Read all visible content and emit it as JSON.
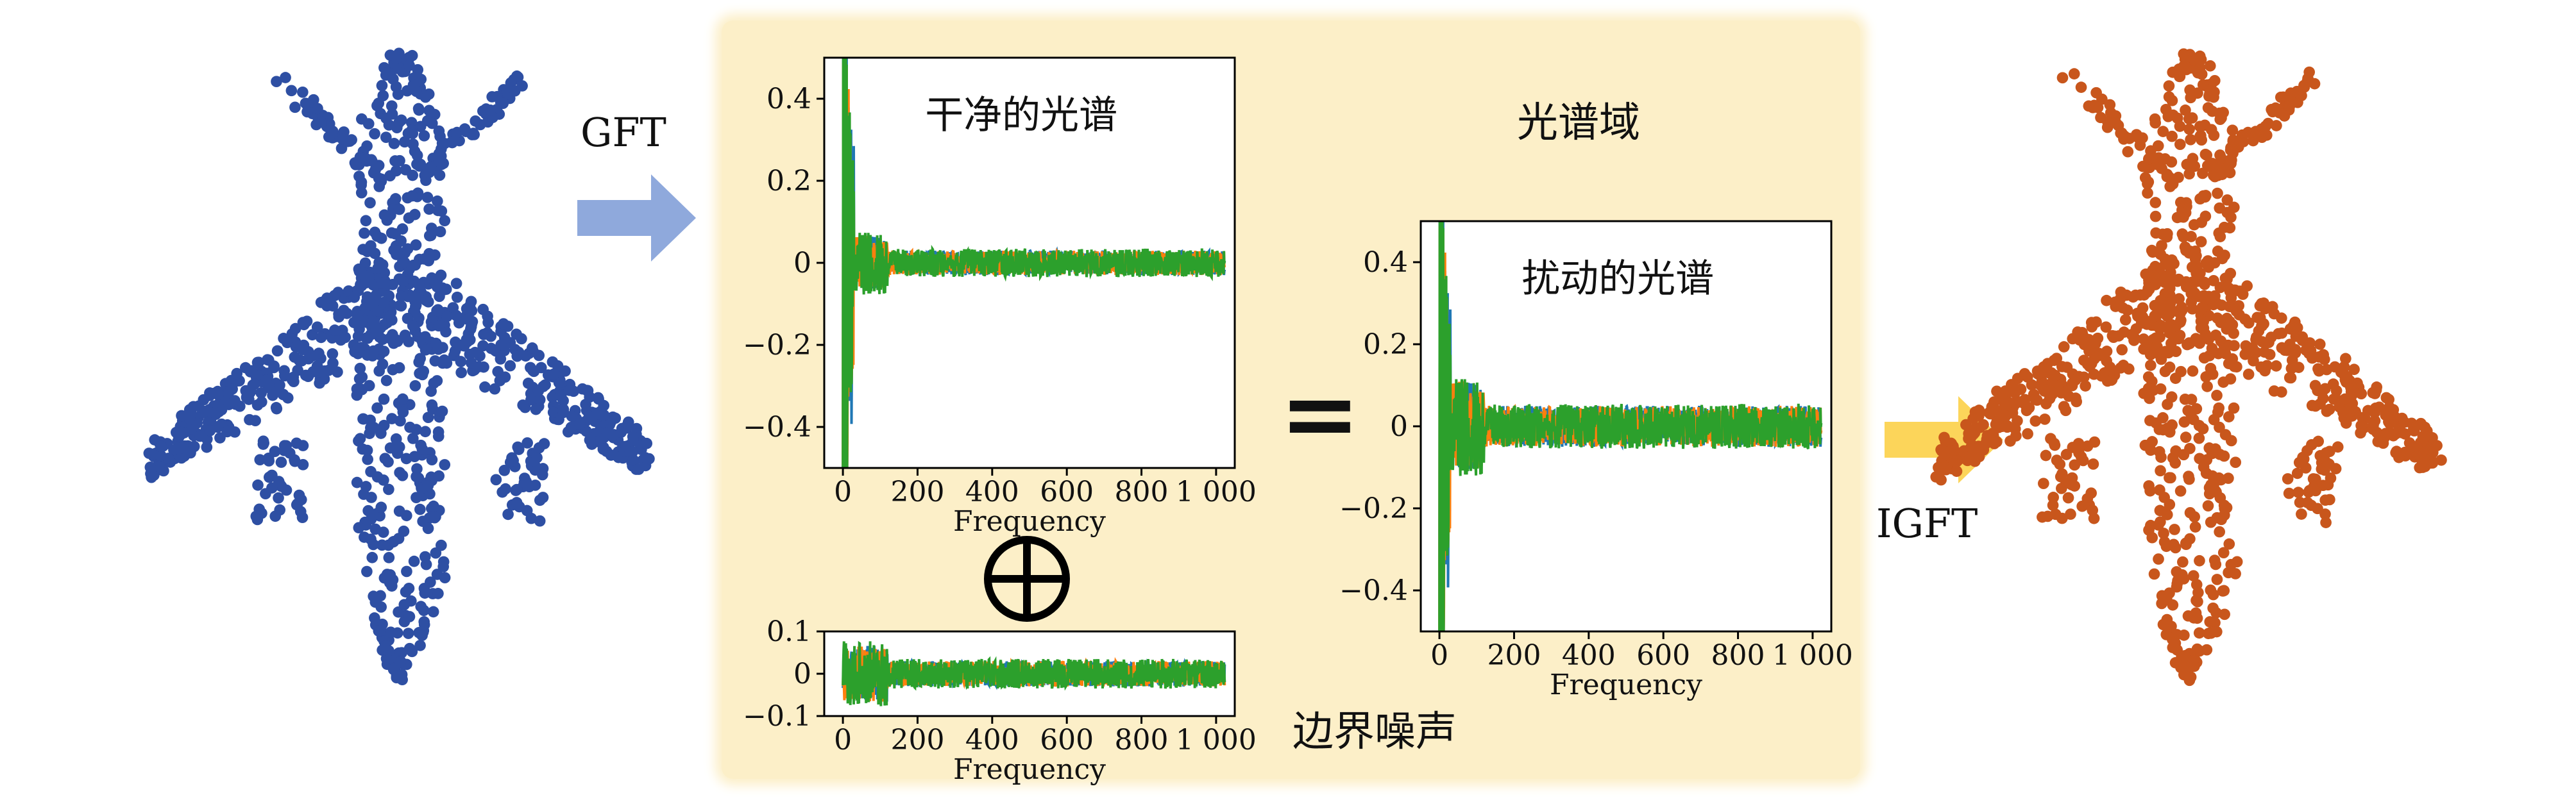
{
  "labels": {
    "gft": "GFT",
    "igft": "IGFT",
    "spectral_domain": "光谱域",
    "boundary_noise": "边界噪声",
    "equals": "="
  },
  "colors": {
    "clean_cloud": "#2e4fa3",
    "perturbed_cloud": "#c8561c",
    "panel": "#fcefc8",
    "arrow_gft": "#8fa9dc",
    "arrow_igft": "#fcd55a",
    "series": [
      "#1f77b4",
      "#ff7f0e",
      "#2ca02c"
    ]
  },
  "chart_data": [
    {
      "type": "line",
      "title": "干净的光谱",
      "xlabel": "Frequency",
      "ylabel": "",
      "xlim": [
        -50,
        1050
      ],
      "ylim": [
        -0.5,
        0.5
      ],
      "xticks": [
        0,
        200,
        400,
        600,
        800,
        1000
      ],
      "xtick_labels": [
        "0",
        "200",
        "400",
        "600",
        "800",
        "1 000"
      ],
      "yticks": [
        -0.4,
        -0.2,
        0,
        0.2,
        0.4
      ],
      "ytick_labels": [
        "−0.4",
        "−0.2",
        "0",
        "0.2",
        "0.4"
      ],
      "n_points": 1024,
      "series": [
        {
          "spike": [
            0.55,
            -0.5,
            0.35,
            -0.3,
            0.2
          ],
          "noise": 0.03
        },
        {
          "spike": [
            0.5,
            -0.5,
            0.38,
            -0.25,
            0.2
          ],
          "noise": 0.03
        },
        {
          "spike": [
            0.6,
            -0.55,
            0.3,
            -0.3,
            0.15
          ],
          "noise": 0.035
        }
      ]
    },
    {
      "type": "line",
      "title": "",
      "xlabel": "Frequency",
      "ylabel": "",
      "xlim": [
        -50,
        1050
      ],
      "ylim": [
        -0.1,
        0.1
      ],
      "xticks": [
        0,
        200,
        400,
        600,
        800,
        1000
      ],
      "xtick_labels": [
        "0",
        "200",
        "400",
        "600",
        "800",
        "1 000"
      ],
      "yticks": [
        -0.1,
        0,
        0.1
      ],
      "ytick_labels": [
        "−0.1",
        "0",
        "0.1"
      ],
      "n_points": 1024,
      "series": [
        {
          "spike": [],
          "noise": 0.03
        },
        {
          "spike": [],
          "noise": 0.03
        },
        {
          "spike": [],
          "noise": 0.035
        }
      ]
    },
    {
      "type": "line",
      "title": "扰动的光谱",
      "xlabel": "Frequency",
      "ylabel": "",
      "xlim": [
        -50,
        1050
      ],
      "ylim": [
        -0.5,
        0.5
      ],
      "xticks": [
        0,
        200,
        400,
        600,
        800,
        1000
      ],
      "xtick_labels": [
        "0",
        "200",
        "400",
        "600",
        "800",
        "1 000"
      ],
      "yticks": [
        -0.4,
        -0.2,
        0,
        0.2,
        0.4
      ],
      "ytick_labels": [
        "−0.4",
        "−0.2",
        "0",
        "0.2",
        "0.4"
      ],
      "n_points": 1024,
      "series": [
        {
          "spike": [
            0.55,
            -0.5,
            0.35,
            -0.3,
            0.2
          ],
          "noise": 0.05
        },
        {
          "spike": [
            0.5,
            -0.5,
            0.38,
            -0.25,
            0.2
          ],
          "noise": 0.05
        },
        {
          "spike": [
            0.6,
            -0.55,
            0.3,
            -0.3,
            0.15
          ],
          "noise": 0.055
        }
      ]
    }
  ]
}
